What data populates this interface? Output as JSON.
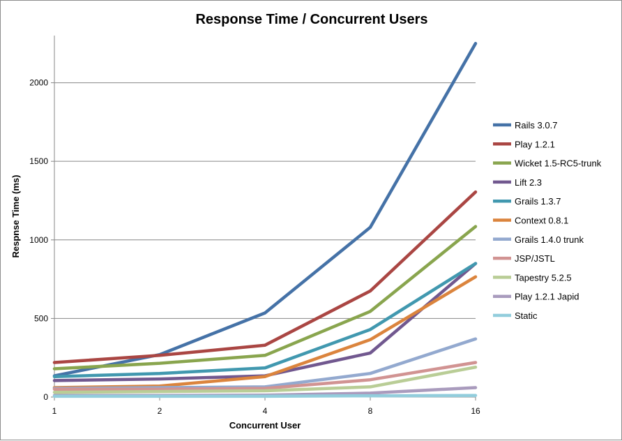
{
  "chart_data": {
    "type": "line",
    "title": "Response Time / Concurrent Users",
    "xlabel": "Concurrent User",
    "ylabel": "Respnse Time (ms)",
    "categories": [
      "1",
      "2",
      "4",
      "8",
      "16"
    ],
    "ylim": [
      0,
      2300
    ],
    "yticks": [
      0,
      500,
      1000,
      1500,
      2000
    ],
    "grid": true,
    "legend": "right",
    "series": [
      {
        "name": "Rails 3.0.7",
        "color": "#4572a7",
        "values": [
          135,
          270,
          535,
          1080,
          2250
        ]
      },
      {
        "name": "Play 1.2.1",
        "color": "#aa4643",
        "values": [
          220,
          265,
          330,
          675,
          1305
        ]
      },
      {
        "name": "Wicket 1.5-RC5-trunk",
        "color": "#89a54e",
        "values": [
          180,
          215,
          265,
          545,
          1085
        ]
      },
      {
        "name": "Lift 2.3",
        "color": "#71588f",
        "values": [
          105,
          115,
          135,
          280,
          850
        ]
      },
      {
        "name": "Grails 1.3.7",
        "color": "#4198af",
        "values": [
          130,
          150,
          185,
          430,
          850
        ]
      },
      {
        "name": "Context 0.8.1",
        "color": "#db843d",
        "values": [
          60,
          70,
          130,
          365,
          765
        ]
      },
      {
        "name": "Grails 1.4.0 trunk",
        "color": "#93a9cf",
        "values": [
          55,
          60,
          65,
          150,
          370
        ]
      },
      {
        "name": "JSP/JSTL",
        "color": "#d19392",
        "values": [
          50,
          50,
          55,
          110,
          220
        ]
      },
      {
        "name": "Tapestry 5.2.5",
        "color": "#b9cd96",
        "values": [
          30,
          35,
          40,
          65,
          190
        ]
      },
      {
        "name": "Play 1.2.1 Japid",
        "color": "#a99bbd",
        "values": [
          10,
          10,
          12,
          25,
          60
        ]
      },
      {
        "name": "Static",
        "color": "#92cddc",
        "values": [
          5,
          5,
          5,
          8,
          10
        ]
      }
    ]
  }
}
